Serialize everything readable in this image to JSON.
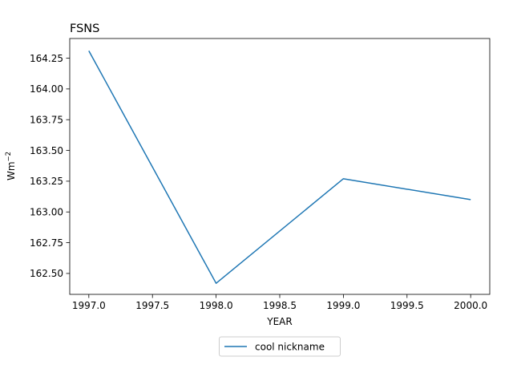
{
  "chart_data": {
    "type": "line",
    "title": "FSNS",
    "xlabel": "YEAR",
    "ylabel": "Wm",
    "ylabel_exponent": "−2",
    "xlim": [
      1996.85,
      2000.15
    ],
    "ylim": [
      162.33,
      164.41
    ],
    "x_ticks": [
      1997.0,
      1997.5,
      1998.0,
      1998.5,
      1999.0,
      1999.5,
      2000.0
    ],
    "x_tick_labels": [
      "1997.0",
      "1997.5",
      "1998.0",
      "1998.5",
      "1999.0",
      "1999.5",
      "2000.0"
    ],
    "y_ticks": [
      162.5,
      162.75,
      163.0,
      163.25,
      163.5,
      163.75,
      164.0,
      164.25
    ],
    "y_tick_labels": [
      "162.50",
      "162.75",
      "163.00",
      "163.25",
      "163.50",
      "163.75",
      "164.00",
      "164.25"
    ],
    "grid": false,
    "legend_placement": "below-center",
    "series": [
      {
        "name": "cool nickname",
        "color": "#1f77b4",
        "x": [
          1997,
          1998,
          1999,
          2000
        ],
        "y": [
          164.31,
          162.42,
          163.27,
          163.1
        ]
      }
    ]
  }
}
